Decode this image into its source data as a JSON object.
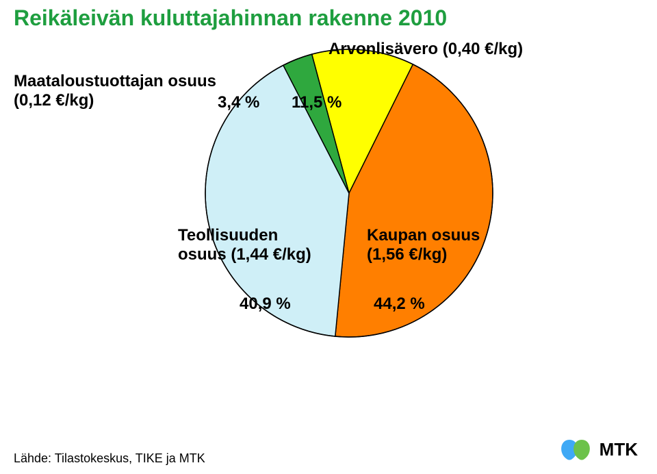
{
  "title": {
    "text": "Reikäleivän kuluttajahinnan rakenne 2010",
    "color": "#1E9E3F",
    "fontsize": 32,
    "fontweight": "bold"
  },
  "chart": {
    "type": "pie",
    "background_color": "#ffffff",
    "stroke_color": "#000000",
    "stroke_width": 1.5,
    "slices": [
      {
        "name": "Arvonlisävero",
        "percent": 11.5,
        "color": "#FFFF00"
      },
      {
        "name": "Kaupan osuus",
        "percent": 44.2,
        "color": "#FF7F00"
      },
      {
        "name": "Teollisuuden osuus",
        "percent": 40.9,
        "color": "#CFEFF7"
      },
      {
        "name": "Maataloustuottajan osuus",
        "percent": 3.4,
        "color": "#2FA83E"
      }
    ]
  },
  "labels": {
    "vat": {
      "line1": "Arvonlisävero (0,40 €/kg)",
      "pct": "11,5 %"
    },
    "farmer": {
      "line1": "Maataloustuottajan osuus",
      "line2": "(0,12 €/kg)",
      "pct": "3,4 %"
    },
    "industry": {
      "line1": "Teollisuuden",
      "line2": "osuus (1,44 €/kg)",
      "pct": "40,9 %"
    },
    "retail": {
      "line1": "Kaupan osuus",
      "line2": "(1,56 €/kg)",
      "pct": "44,2 %"
    }
  },
  "source": "Lähde: Tilastokeskus, TIKE ja MTK",
  "logo": {
    "text": "MTK",
    "left_color": "#3FA9F5",
    "right_color": "#6CC24A"
  }
}
